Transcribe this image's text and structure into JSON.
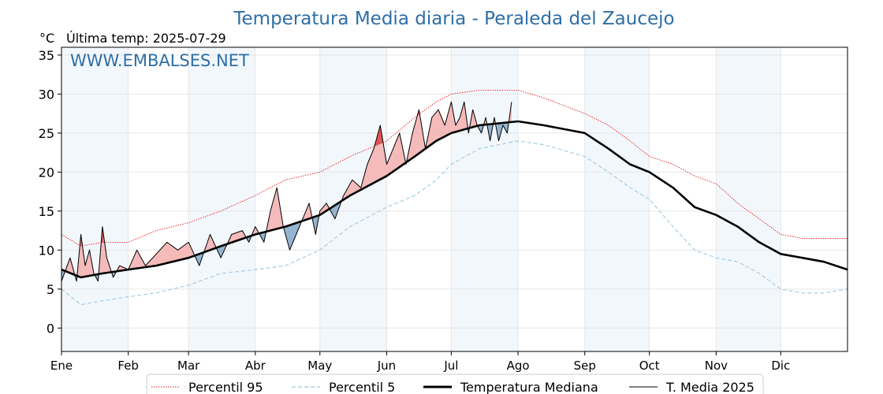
{
  "chart_data": {
    "type": "line",
    "title": "Temperatura Media diaria - Peraleda del Zaucejo",
    "unit_label": "°C",
    "last_temp_label": "Última temp: 2025-07-29",
    "watermark": "WWW.EMBALSES.NET",
    "ylim": [
      -3,
      36
    ],
    "yticks": [
      0,
      5,
      10,
      15,
      20,
      25,
      30,
      35
    ],
    "xlim": [
      1,
      366
    ],
    "grid": true,
    "legend_position": "bottom-center",
    "months": [
      {
        "label": "Ene",
        "day": 1
      },
      {
        "label": "Feb",
        "day": 32
      },
      {
        "label": "Mar",
        "day": 60
      },
      {
        "label": "Abr",
        "day": 91
      },
      {
        "label": "May",
        "day": 121
      },
      {
        "label": "Jun",
        "day": 152
      },
      {
        "label": "Jul",
        "day": 182
      },
      {
        "label": "Ago",
        "day": 213
      },
      {
        "label": "Sep",
        "day": 244
      },
      {
        "label": "Oct",
        "day": 274
      },
      {
        "label": "Nov",
        "day": 305
      },
      {
        "label": "Dic",
        "day": 335
      }
    ],
    "shaded_months": [
      [
        1,
        32
      ],
      [
        60,
        91
      ],
      [
        121,
        152
      ],
      [
        182,
        213
      ],
      [
        244,
        274
      ],
      [
        305,
        335
      ]
    ],
    "series": [
      {
        "name": "Percentil 95",
        "color": "#e31a1c",
        "style": "dotted",
        "x": [
          1,
          10,
          20,
          32,
          45,
          60,
          75,
          91,
          105,
          121,
          135,
          152,
          165,
          175,
          182,
          195,
          213,
          225,
          244,
          255,
          265,
          274,
          285,
          295,
          305,
          315,
          325,
          335,
          345,
          355,
          366
        ],
        "y": [
          12,
          10.5,
          11,
          11,
          12.5,
          13.5,
          15,
          17,
          19,
          20,
          22,
          24,
          27,
          29,
          30,
          30.5,
          30.5,
          29.5,
          27.5,
          26,
          24,
          22,
          21,
          19.5,
          18.5,
          16,
          14,
          12,
          11.5,
          11.5,
          11.5
        ]
      },
      {
        "name": "Percentil 5",
        "color": "#9ecae1",
        "style": "dashed",
        "x": [
          1,
          10,
          20,
          32,
          45,
          60,
          75,
          91,
          105,
          121,
          135,
          152,
          165,
          175,
          182,
          195,
          213,
          225,
          244,
          255,
          265,
          274,
          285,
          295,
          305,
          315,
          325,
          335,
          345,
          355,
          366
        ],
        "y": [
          5,
          3,
          3.5,
          4,
          4.5,
          5.5,
          7,
          7.5,
          8,
          10,
          13,
          15.5,
          17,
          19,
          21,
          23,
          24,
          23.5,
          22,
          20,
          18,
          16.5,
          13,
          10,
          9,
          8.5,
          7,
          5,
          4.5,
          4.5,
          5
        ]
      },
      {
        "name": "Temperatura Mediana",
        "color": "#000000",
        "style": "solid-thick",
        "x": [
          1,
          10,
          20,
          32,
          45,
          60,
          75,
          91,
          105,
          121,
          135,
          152,
          165,
          175,
          182,
          195,
          213,
          225,
          244,
          255,
          265,
          274,
          285,
          295,
          305,
          315,
          325,
          335,
          345,
          355,
          366
        ],
        "y": [
          7.5,
          6.5,
          7,
          7.5,
          8,
          9,
          10.5,
          12,
          13,
          14.5,
          17,
          19.5,
          22,
          24,
          25,
          26,
          26.5,
          26,
          25,
          23,
          21,
          20,
          18,
          15.5,
          14.5,
          13,
          11,
          9.5,
          9,
          8.5,
          7.5
        ]
      },
      {
        "name": "T. Media 2025",
        "color": "#000000",
        "style": "solid-thin",
        "x": [
          1,
          5,
          8,
          10,
          12,
          14,
          16,
          18,
          20,
          22,
          25,
          28,
          32,
          36,
          40,
          45,
          50,
          55,
          60,
          65,
          70,
          75,
          80,
          85,
          88,
          91,
          95,
          98,
          101,
          104,
          107,
          110,
          113,
          116,
          119,
          121,
          124,
          128,
          132,
          136,
          140,
          143,
          146,
          149,
          152,
          155,
          158,
          161,
          164,
          167,
          170,
          173,
          176,
          179,
          182,
          184,
          186,
          188,
          190,
          192,
          194,
          196,
          198,
          200,
          202,
          204,
          206,
          208,
          210
        ],
        "y": [
          6,
          9,
          6,
          12,
          8,
          10,
          7,
          6,
          13,
          9,
          6.5,
          8,
          7.5,
          10,
          8,
          9.5,
          11,
          10,
          11,
          8,
          12,
          9,
          12,
          12.5,
          11,
          13,
          11,
          15,
          18,
          13,
          10,
          12,
          14,
          16,
          12,
          15,
          16,
          14,
          17,
          19,
          18,
          21,
          23,
          26,
          21,
          23,
          25,
          21,
          25,
          28,
          23,
          27,
          28,
          26,
          29,
          26,
          27,
          29,
          25,
          28,
          26,
          25,
          27,
          24,
          27,
          24,
          26,
          25,
          29
        ]
      }
    ]
  }
}
